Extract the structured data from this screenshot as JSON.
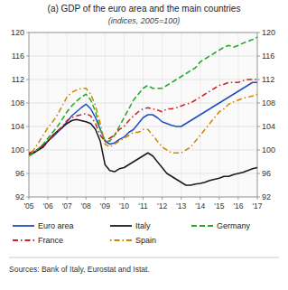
{
  "chart_data": {
    "type": "line",
    "title": "(a) GDP of the euro area and the main countries",
    "subtitle": "(indices, 2005=100)",
    "annotations": [
      "Sources: Bank of Italy, Eurostat and Istat."
    ],
    "x": [
      2005.0,
      2005.25,
      2005.5,
      2005.75,
      2006.0,
      2006.25,
      2006.5,
      2006.75,
      2007.0,
      2007.25,
      2007.5,
      2007.75,
      2008.0,
      2008.25,
      2008.5,
      2008.75,
      2009.0,
      2009.25,
      2009.5,
      2009.75,
      2010.0,
      2010.25,
      2010.5,
      2010.75,
      2011.0,
      2011.25,
      2011.5,
      2011.75,
      2012.0,
      2012.25,
      2012.5,
      2012.75,
      2013.0,
      2013.25,
      2013.5,
      2013.75,
      2014.0,
      2014.25,
      2014.5,
      2014.75,
      2015.0,
      2015.25,
      2015.5,
      2015.75,
      2016.0,
      2016.25,
      2016.5,
      2016.75,
      2017.0
    ],
    "series": [
      {
        "name": "Euro area",
        "color": "#1f4ebd",
        "line_style": "solid",
        "values": [
          99.0,
          99.5,
          100.2,
          100.8,
          101.5,
          102.2,
          103.0,
          103.8,
          104.8,
          105.8,
          106.5,
          107.2,
          107.8,
          107.0,
          105.5,
          103.5,
          101.5,
          101.0,
          101.2,
          101.8,
          102.2,
          103.0,
          103.5,
          104.5,
          105.5,
          106.0,
          106.0,
          105.5,
          104.8,
          104.5,
          104.2,
          104.0,
          104.0,
          104.5,
          105.0,
          105.5,
          106.0,
          106.5,
          107.0,
          107.5,
          108.0,
          108.5,
          109.0,
          109.5,
          110.0,
          110.5,
          111.0,
          111.5,
          111.5
        ]
      },
      {
        "name": "Italy",
        "color": "#1a1a1a",
        "line_style": "solid",
        "values": [
          99.3,
          99.5,
          100.0,
          100.5,
          101.5,
          102.5,
          103.2,
          103.8,
          104.5,
          105.0,
          105.2,
          105.0,
          104.8,
          104.5,
          103.5,
          101.5,
          97.5,
          96.5,
          96.3,
          96.8,
          97.0,
          97.5,
          98.0,
          98.5,
          99.0,
          99.5,
          99.0,
          98.0,
          97.0,
          96.0,
          95.5,
          95.0,
          94.5,
          94.0,
          94.0,
          94.2,
          94.3,
          94.5,
          94.8,
          95.0,
          95.2,
          95.5,
          95.5,
          95.8,
          96.0,
          96.2,
          96.5,
          96.8,
          97.0
        ]
      },
      {
        "name": "Germany",
        "color": "#22aa22",
        "line_style": "dashed",
        "values": [
          99.0,
          99.5,
          100.2,
          101.0,
          102.0,
          103.0,
          104.0,
          105.2,
          106.5,
          107.5,
          108.3,
          109.0,
          109.5,
          108.5,
          106.5,
          103.5,
          101.5,
          101.5,
          102.5,
          104.0,
          105.5,
          107.0,
          108.5,
          109.5,
          110.5,
          111.0,
          110.5,
          110.5,
          110.5,
          111.0,
          111.5,
          112.0,
          112.5,
          113.0,
          113.5,
          114.0,
          115.0,
          115.5,
          116.0,
          116.5,
          117.0,
          117.5,
          117.8,
          117.5,
          117.8,
          118.2,
          118.5,
          118.8,
          119.2
        ]
      },
      {
        "name": "France",
        "color": "#cc2222",
        "line_style": "dashdot",
        "values": [
          99.5,
          99.8,
          100.2,
          100.8,
          101.5,
          102.5,
          103.2,
          104.0,
          105.0,
          105.5,
          105.8,
          106.0,
          106.2,
          105.8,
          104.5,
          102.5,
          101.5,
          102.0,
          102.5,
          103.5,
          104.0,
          105.0,
          105.8,
          106.5,
          107.0,
          107.2,
          107.0,
          106.8,
          106.5,
          107.0,
          107.0,
          107.2,
          107.5,
          107.8,
          108.0,
          108.5,
          109.0,
          109.5,
          110.0,
          110.5,
          111.0,
          111.2,
          111.5,
          111.5,
          111.5,
          111.8,
          112.0,
          112.0,
          112.0
        ]
      },
      {
        "name": "Spain",
        "color": "#cc8800",
        "line_style": "dotdash",
        "values": [
          99.0,
          100.0,
          101.2,
          102.5,
          103.8,
          104.8,
          106.0,
          107.5,
          109.0,
          109.8,
          110.2,
          110.5,
          110.5,
          109.5,
          107.5,
          104.5,
          101.0,
          100.5,
          101.0,
          101.5,
          102.0,
          102.5,
          103.0,
          103.0,
          103.5,
          103.5,
          102.5,
          101.5,
          100.5,
          100.0,
          99.5,
          99.5,
          99.5,
          100.0,
          100.5,
          101.5,
          102.5,
          103.5,
          104.5,
          105.5,
          106.5,
          107.0,
          107.8,
          108.2,
          108.5,
          108.8,
          109.0,
          109.2,
          109.5
        ]
      }
    ],
    "xlim": [
      2005,
      2017
    ],
    "xticks": [
      {
        "value": 2005,
        "label": "'05"
      },
      {
        "value": 2006,
        "label": "'06"
      },
      {
        "value": 2007,
        "label": "'07"
      },
      {
        "value": 2008,
        "label": "'08"
      },
      {
        "value": 2009,
        "label": "'09"
      },
      {
        "value": 2010,
        "label": "'10"
      },
      {
        "value": 2011,
        "label": "'11"
      },
      {
        "value": 2012,
        "label": "'12"
      },
      {
        "value": 2013,
        "label": "'13"
      },
      {
        "value": 2014,
        "label": "'14"
      },
      {
        "value": 2015,
        "label": "'15"
      },
      {
        "value": 2016,
        "label": "'16"
      },
      {
        "value": 2017,
        "label": "'17"
      }
    ],
    "ylim": [
      92,
      120
    ],
    "yticks": [
      92,
      96,
      100,
      104,
      108,
      112,
      116,
      120
    ],
    "y2lim": [
      92,
      120
    ],
    "y2ticks": [
      92,
      96,
      100,
      104,
      108,
      112,
      116,
      120
    ],
    "grid": true,
    "legend": "bottom"
  }
}
